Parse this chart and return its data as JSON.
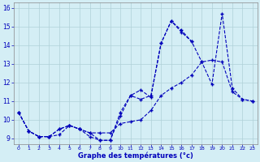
{
  "xlabel": "Graphe des températures (°c)",
  "background_color": "#d4eef5",
  "line_color": "#0000bb",
  "grid_color": "#b0d0d8",
  "ylim": [
    8.7,
    16.3
  ],
  "yticks": [
    9,
    10,
    11,
    12,
    13,
    14,
    15,
    16
  ],
  "xlim": [
    -0.5,
    23.5
  ],
  "xticks": [
    0,
    1,
    2,
    3,
    4,
    5,
    6,
    7,
    8,
    9,
    10,
    11,
    12,
    13,
    14,
    15,
    16,
    17,
    18,
    19,
    20,
    21,
    22,
    23
  ],
  "line1_x": [
    0,
    1,
    2,
    3,
    4,
    5,
    6,
    7,
    8,
    9,
    10,
    11,
    12,
    13,
    14,
    15,
    16,
    17
  ],
  "line1_y": [
    10.4,
    9.4,
    9.1,
    9.1,
    9.2,
    9.7,
    9.5,
    9.3,
    8.9,
    8.9,
    10.2,
    11.3,
    11.6,
    11.2,
    14.1,
    15.3,
    14.8,
    14.2
  ],
  "line2_x": [
    0,
    1,
    2,
    3,
    4,
    5,
    6,
    7,
    8,
    9,
    10,
    11,
    12,
    13,
    14,
    15,
    16,
    17,
    18,
    19,
    20,
    21,
    22,
    23
  ],
  "line2_y": [
    10.4,
    9.4,
    9.1,
    9.1,
    9.5,
    9.7,
    9.5,
    9.1,
    8.9,
    8.9,
    10.4,
    11.3,
    11.1,
    11.3,
    14.1,
    15.3,
    14.7,
    14.2,
    13.1,
    11.9,
    15.7,
    11.7,
    11.1,
    11.0
  ],
  "line3_x": [
    0,
    1,
    2,
    3,
    4,
    5,
    6,
    7,
    8,
    9,
    10,
    11,
    12,
    13,
    14,
    15,
    16,
    17,
    18,
    19,
    20,
    21,
    22,
    23
  ],
  "line3_y": [
    10.4,
    9.4,
    9.1,
    9.1,
    9.5,
    9.7,
    9.5,
    9.3,
    9.3,
    9.3,
    9.8,
    9.9,
    10.0,
    10.5,
    11.3,
    11.7,
    12.0,
    12.4,
    13.1,
    13.2,
    13.1,
    11.5,
    11.1,
    11.0
  ]
}
